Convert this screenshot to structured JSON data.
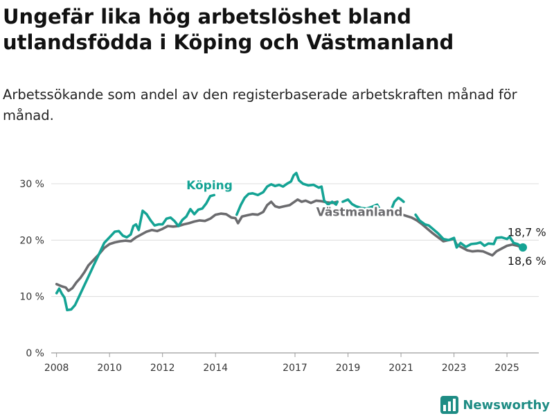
{
  "header": {
    "title": "Ungefär lika hög arbetslöshet bland utlandsfödda i Köping och Västmanland",
    "subtitle": "Arbetssökande som andel av den registerbaserade arbetskraften månad för månad."
  },
  "brand": {
    "name": "Newsworthy",
    "icon": "bar-chart-logo-icon",
    "color": "#1e8c84"
  },
  "chart_data": {
    "type": "line",
    "title": "Ungefär lika hög arbetslöshet bland utlandsfödda i Köping och Västmanland",
    "subtitle": "Arbetssökande som andel av den registerbaserade arbetskraften månad för månad.",
    "xlabel": "",
    "ylabel": "",
    "xlim": [
      2007.8,
      2026.2
    ],
    "ylim": [
      0,
      30
    ],
    "x_ticks": [
      2008,
      2010,
      2012,
      2014,
      2017,
      2019,
      2021,
      2023,
      2025
    ],
    "x_tick_labels": [
      "2008",
      "2010",
      "2012",
      "2014",
      "2017",
      "2019",
      "2021",
      "2023",
      "2025"
    ],
    "y_ticks": [
      0,
      10,
      20,
      30
    ],
    "y_tick_labels": [
      "0 %",
      "10 %",
      "20 %",
      "30 %"
    ],
    "grid": "horizontal",
    "legend": "direct labels on lines",
    "series": [
      {
        "name": "Västmanland",
        "color": "#6b6b6e",
        "end_label": "18,6 %",
        "points": [
          [
            2008.0,
            12.2
          ],
          [
            2008.2,
            11.8
          ],
          [
            2008.35,
            11.6
          ],
          [
            2008.45,
            11.0
          ],
          [
            2008.6,
            11.5
          ],
          [
            2008.75,
            12.5
          ],
          [
            2008.9,
            13.3
          ],
          [
            2009.05,
            14.3
          ],
          [
            2009.2,
            15.5
          ],
          [
            2009.4,
            16.5
          ],
          [
            2009.6,
            17.5
          ],
          [
            2009.8,
            18.6
          ],
          [
            2010.0,
            19.3
          ],
          [
            2010.2,
            19.6
          ],
          [
            2010.4,
            19.8
          ],
          [
            2010.6,
            19.9
          ],
          [
            2010.8,
            19.8
          ],
          [
            2011.0,
            20.5
          ],
          [
            2011.2,
            21.0
          ],
          [
            2011.4,
            21.5
          ],
          [
            2011.6,
            21.8
          ],
          [
            2011.8,
            21.6
          ],
          [
            2012.0,
            22.0
          ],
          [
            2012.2,
            22.5
          ],
          [
            2012.4,
            22.4
          ],
          [
            2012.6,
            22.5
          ],
          [
            2012.8,
            22.8
          ],
          [
            2013.0,
            23.0
          ],
          [
            2013.2,
            23.3
          ],
          [
            2013.4,
            23.5
          ],
          [
            2013.6,
            23.4
          ],
          [
            2013.8,
            23.8
          ],
          [
            2014.0,
            24.5
          ],
          [
            2014.2,
            24.7
          ],
          [
            2014.4,
            24.6
          ],
          [
            2014.6,
            24.0
          ],
          [
            2014.75,
            23.9
          ],
          [
            2014.85,
            23.0
          ],
          [
            2015.0,
            24.2
          ],
          [
            2015.2,
            24.4
          ],
          [
            2015.4,
            24.6
          ],
          [
            2015.6,
            24.5
          ],
          [
            2015.8,
            25.0
          ],
          [
            2015.95,
            26.2
          ],
          [
            2016.1,
            26.8
          ],
          [
            2016.25,
            26.0
          ],
          [
            2016.4,
            25.8
          ],
          [
            2016.6,
            26.0
          ],
          [
            2016.8,
            26.2
          ],
          [
            2016.95,
            26.7
          ],
          [
            2017.1,
            27.2
          ],
          [
            2017.25,
            26.8
          ],
          [
            2017.4,
            27.0
          ],
          [
            2017.6,
            26.6
          ],
          [
            2017.8,
            27.0
          ],
          [
            2018.0,
            26.9
          ],
          [
            2018.2,
            26.7
          ],
          [
            2018.4,
            26.6
          ],
          [
            2018.6,
            26.8
          ]
        ]
      },
      {
        "name": "Västmanland (forts.)",
        "color": "#6b6b6e",
        "points": [
          [
            2020.3,
            25.3
          ],
          [
            2020.5,
            25.0
          ],
          [
            2020.7,
            25.2
          ],
          [
            2020.9,
            25.0
          ],
          [
            2021.0,
            24.6
          ],
          [
            2021.2,
            24.3
          ],
          [
            2021.4,
            24.0
          ],
          [
            2021.6,
            23.5
          ],
          [
            2021.8,
            22.8
          ],
          [
            2022.0,
            22.0
          ],
          [
            2022.2,
            21.2
          ],
          [
            2022.4,
            20.5
          ],
          [
            2022.6,
            19.8
          ],
          [
            2022.8,
            20.0
          ],
          [
            2023.0,
            20.2
          ],
          [
            2023.1,
            19.2
          ],
          [
            2023.3,
            18.7
          ],
          [
            2023.5,
            18.2
          ],
          [
            2023.7,
            18.0
          ],
          [
            2023.9,
            18.1
          ],
          [
            2024.1,
            18.0
          ],
          [
            2024.3,
            17.6
          ],
          [
            2024.45,
            17.3
          ],
          [
            2024.6,
            18.0
          ],
          [
            2024.8,
            18.5
          ],
          [
            2025.0,
            19.0
          ],
          [
            2025.2,
            19.2
          ],
          [
            2025.4,
            19.0
          ],
          [
            2025.6,
            18.6
          ]
        ]
      },
      {
        "name": "Köping",
        "color": "#14a394",
        "end_label": "18,7 %",
        "points": [
          [
            2008.0,
            10.6
          ],
          [
            2008.1,
            11.4
          ],
          [
            2008.2,
            10.5
          ],
          [
            2008.3,
            9.8
          ],
          [
            2008.4,
            7.6
          ],
          [
            2008.55,
            7.7
          ],
          [
            2008.7,
            8.5
          ],
          [
            2008.85,
            10.0
          ],
          [
            2009.0,
            11.5
          ],
          [
            2009.2,
            13.5
          ],
          [
            2009.4,
            15.5
          ],
          [
            2009.6,
            17.5
          ],
          [
            2009.8,
            19.5
          ],
          [
            2010.0,
            20.5
          ],
          [
            2010.2,
            21.5
          ],
          [
            2010.35,
            21.6
          ],
          [
            2010.5,
            20.8
          ],
          [
            2010.65,
            20.5
          ],
          [
            2010.8,
            21.0
          ],
          [
            2010.9,
            22.5
          ],
          [
            2011.0,
            22.8
          ],
          [
            2011.1,
            21.8
          ],
          [
            2011.25,
            25.2
          ],
          [
            2011.4,
            24.6
          ],
          [
            2011.55,
            23.5
          ],
          [
            2011.7,
            22.6
          ],
          [
            2011.85,
            22.8
          ],
          [
            2012.0,
            22.8
          ],
          [
            2012.15,
            23.8
          ],
          [
            2012.3,
            24.0
          ],
          [
            2012.45,
            23.4
          ],
          [
            2012.6,
            22.5
          ],
          [
            2012.75,
            23.6
          ],
          [
            2012.9,
            24.2
          ],
          [
            2013.05,
            25.5
          ],
          [
            2013.2,
            24.6
          ],
          [
            2013.35,
            25.4
          ],
          [
            2013.5,
            25.6
          ],
          [
            2013.65,
            26.5
          ],
          [
            2013.8,
            27.8
          ],
          [
            2013.95,
            28.0
          ]
        ]
      },
      {
        "name": "Köping (forts. 1)",
        "color": "#14a394",
        "points": [
          [
            2014.8,
            24.5
          ],
          [
            2014.95,
            26.2
          ],
          [
            2015.1,
            27.5
          ],
          [
            2015.25,
            28.2
          ],
          [
            2015.4,
            28.3
          ],
          [
            2015.6,
            28.0
          ],
          [
            2015.8,
            28.5
          ],
          [
            2015.95,
            29.5
          ],
          [
            2016.1,
            29.9
          ],
          [
            2016.25,
            29.6
          ],
          [
            2016.4,
            29.8
          ],
          [
            2016.55,
            29.5
          ],
          [
            2016.7,
            30.0
          ],
          [
            2016.85,
            30.4
          ],
          [
            2016.95,
            31.5
          ],
          [
            2017.05,
            31.9
          ],
          [
            2017.15,
            30.6
          ],
          [
            2017.3,
            30.0
          ],
          [
            2017.5,
            29.7
          ],
          [
            2017.7,
            29.8
          ],
          [
            2017.9,
            29.3
          ],
          [
            2018.0,
            29.5
          ],
          [
            2018.1,
            27.0
          ],
          [
            2018.25,
            26.3
          ],
          [
            2018.4,
            26.8
          ],
          [
            2018.55,
            26.3
          ],
          [
            2018.6,
            26.8
          ]
        ]
      },
      {
        "name": "Köping (forts. 2)",
        "color": "#14a394",
        "points": [
          [
            2018.8,
            26.8
          ],
          [
            2019.0,
            27.2
          ],
          [
            2019.15,
            26.4
          ],
          [
            2019.3,
            26.0
          ],
          [
            2019.5,
            25.7
          ],
          [
            2019.7,
            25.6
          ],
          [
            2019.9,
            25.9
          ],
          [
            2020.1,
            26.3
          ],
          [
            2020.2,
            25.5
          ],
          [
            2020.3,
            24.8
          ],
          [
            2020.45,
            25.2
          ],
          [
            2020.6,
            25.0
          ],
          [
            2020.75,
            26.8
          ],
          [
            2020.9,
            27.5
          ],
          [
            2021.0,
            27.2
          ],
          [
            2021.1,
            26.8
          ]
        ]
      },
      {
        "name": "Köping (forts. 3)",
        "color": "#14a394",
        "points": [
          [
            2021.55,
            24.5
          ],
          [
            2021.7,
            23.5
          ],
          [
            2021.9,
            22.8
          ],
          [
            2022.05,
            22.6
          ],
          [
            2022.2,
            22.0
          ],
          [
            2022.4,
            21.2
          ],
          [
            2022.6,
            20.2
          ],
          [
            2022.8,
            20.0
          ],
          [
            2023.0,
            20.4
          ],
          [
            2023.1,
            18.7
          ],
          [
            2023.25,
            19.5
          ],
          [
            2023.45,
            18.8
          ],
          [
            2023.65,
            19.3
          ],
          [
            2023.85,
            19.4
          ],
          [
            2024.0,
            19.6
          ],
          [
            2024.15,
            19.0
          ],
          [
            2024.3,
            19.4
          ],
          [
            2024.5,
            19.3
          ],
          [
            2024.6,
            20.4
          ],
          [
            2024.8,
            20.5
          ],
          [
            2025.0,
            20.2
          ],
          [
            2025.1,
            20.6
          ],
          [
            2025.25,
            19.5
          ],
          [
            2025.4,
            19.3
          ],
          [
            2025.6,
            18.7
          ]
        ]
      }
    ],
    "annotations": [
      {
        "text": "Köping",
        "color": "#14a394"
      },
      {
        "text": "Västmanland",
        "color": "#6b6b6e"
      },
      {
        "text": "18,7 %",
        "color": "#1a1a1a"
      },
      {
        "text": "18,6 %",
        "color": "#1a1a1a"
      }
    ]
  }
}
